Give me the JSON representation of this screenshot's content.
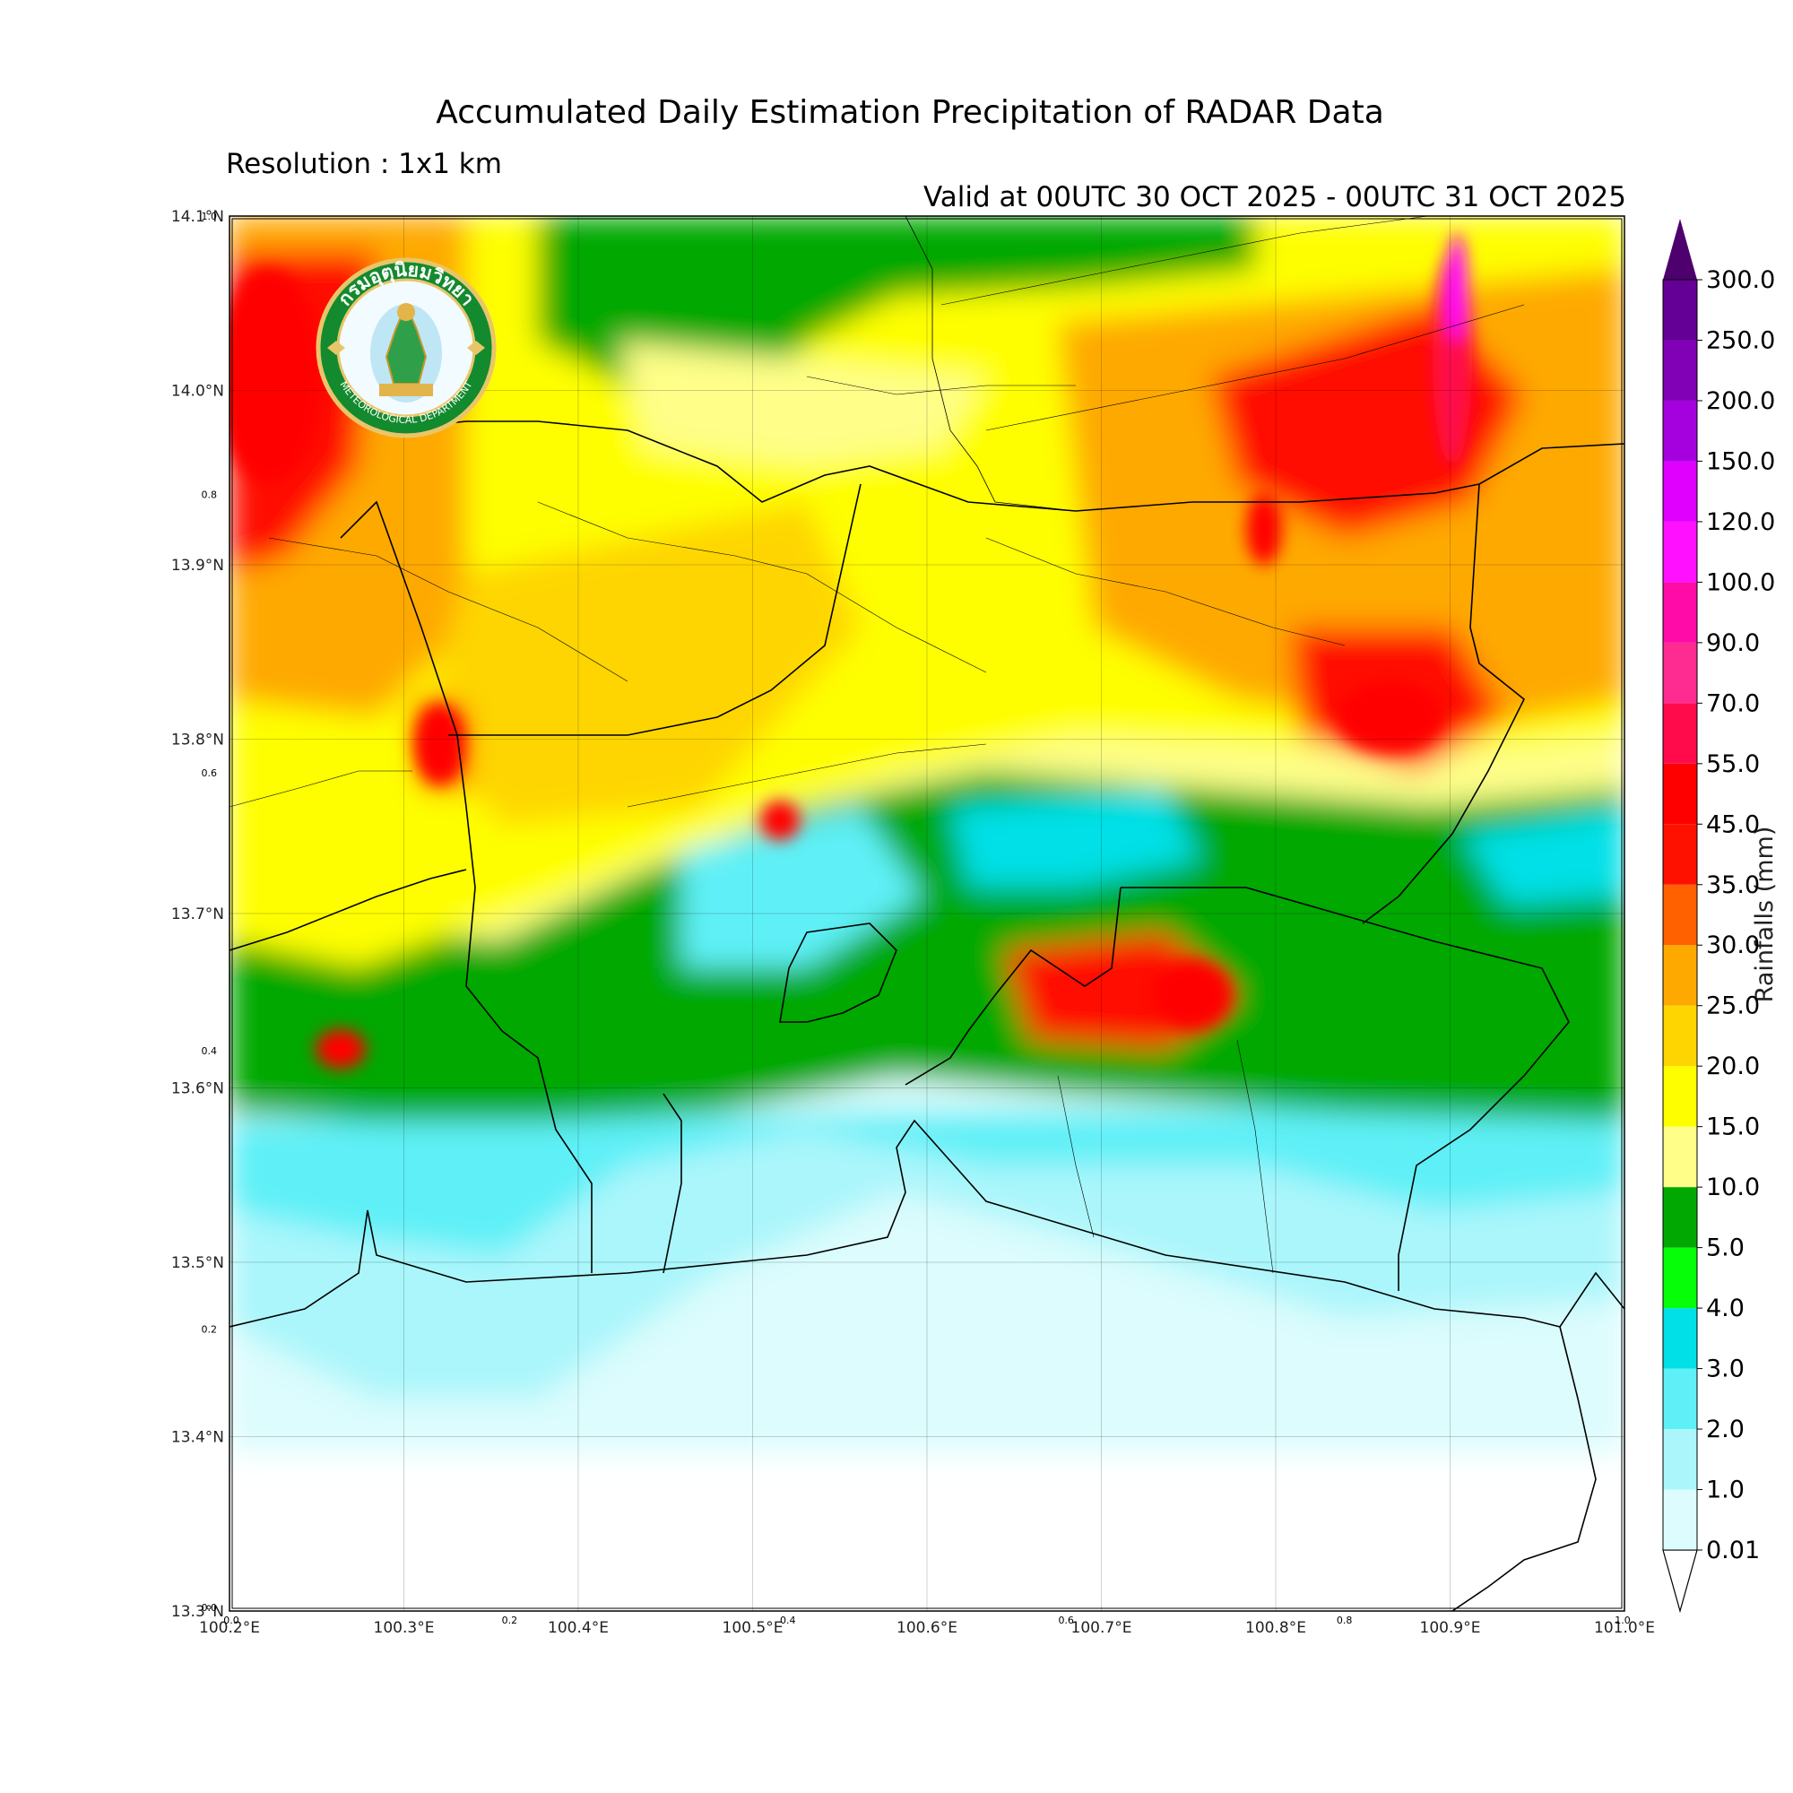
{
  "title": "Accumulated Daily Estimation Precipitation of RADAR Data",
  "subtitle": "Resolution : 1x1 km",
  "valid_text": "Valid at 00UTC 30 OCT 2025 - 00UTC 31 OCT 2025",
  "logo": {
    "thai_text": "กรมอุตุนิยมวิทยา",
    "english_text": "METEOROLOGICAL DEPARTMENT"
  },
  "axes": {
    "lon_ticks": [
      "100.2°E",
      "100.3°E",
      "100.4°E",
      "100.5°E",
      "100.6°E",
      "100.7°E",
      "100.8°E",
      "100.9°E",
      "101.0°E"
    ],
    "lat_ticks": [
      "14.1°N",
      "14.0°N",
      "13.9°N",
      "13.8°N",
      "13.7°N",
      "13.6°N",
      "13.5°N",
      "13.4°N",
      "13.3°N"
    ],
    "minor_x": [
      "0.0",
      "0.2",
      "0.4",
      "0.6",
      "0.8",
      "1.0"
    ],
    "minor_y": [
      "1.0",
      "0.8",
      "0.6",
      "0.4",
      "0.2",
      "0.0"
    ],
    "lon_range": [
      100.2,
      101.0
    ],
    "lat_range": [
      13.3,
      14.1
    ],
    "grid": true
  },
  "colorbar": {
    "title": "Rainfalls (mm)",
    "labels": [
      "0.01",
      "1.0",
      "2.0",
      "3.0",
      "4.0",
      "5.0",
      "10.0",
      "15.0",
      "20.0",
      "25.0",
      "30.0",
      "35.0",
      "45.0",
      "55.0",
      "70.0",
      "90.0",
      "100.0",
      "120.0",
      "150.0",
      "200.0",
      "250.0",
      "300.0"
    ],
    "colors": [
      "#dcfcfd",
      "#aaf6fb",
      "#5ff0f7",
      "#01e0e6",
      "#06ff08",
      "#02a802",
      "#fefe89",
      "#fefe01",
      "#fed500",
      "#fea900",
      "#ff6100",
      "#ff1100",
      "#ff0000",
      "#ff0a4b",
      "#fe2b91",
      "#ff0ba8",
      "#ff10ff",
      "#df00fe",
      "#a501de",
      "#8101b6",
      "#650096"
    ],
    "extend_max_color": "#4d006e"
  }
}
